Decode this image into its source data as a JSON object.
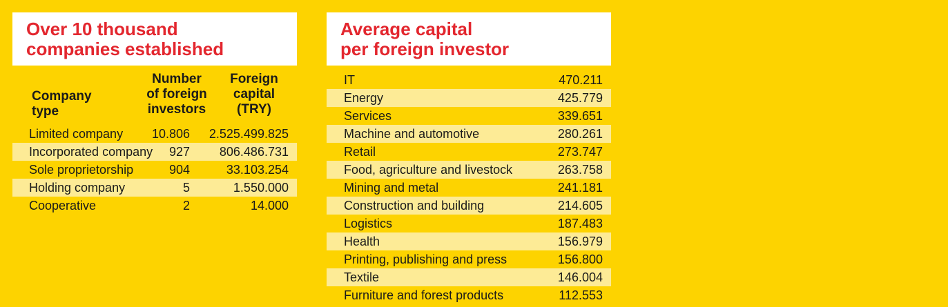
{
  "left_panel": {
    "title_lines": [
      "Over 10 thousand",
      "companies established"
    ],
    "headers": {
      "type_lines": [
        "Company",
        "type"
      ],
      "investors_lines": [
        "Number",
        "of foreign",
        "investors"
      ],
      "capital_lines": [
        "Foreign",
        "capital",
        "(TRY)"
      ]
    },
    "rows": [
      {
        "type": "Limited company",
        "investors": "10.806",
        "capital": "2.525.499.825"
      },
      {
        "type": "Incorporated company",
        "investors": "927",
        "capital": "806.486.731"
      },
      {
        "type": "Sole proprietorship",
        "investors": "904",
        "capital": "33.103.254"
      },
      {
        "type": "Holding company",
        "investors": "5",
        "capital": "1.550.000"
      },
      {
        "type": "Cooperative",
        "investors": "2",
        "capital": "14.000"
      }
    ]
  },
  "right_panel": {
    "title_lines": [
      "Average capital",
      "per foreign investor"
    ],
    "rows": [
      {
        "sector": "IT",
        "value": "470.211"
      },
      {
        "sector": "Energy",
        "value": "425.779"
      },
      {
        "sector": "Services",
        "value": "339.651"
      },
      {
        "sector": "Machine and automotive",
        "value": "280.261"
      },
      {
        "sector": "Retail",
        "value": "273.747"
      },
      {
        "sector": "Food, agriculture and livestock",
        "value": "263.758"
      },
      {
        "sector": "Mining and metal",
        "value": "241.181"
      },
      {
        "sector": "Construction and building",
        "value": "214.605"
      },
      {
        "sector": "Logistics",
        "value": "187.483"
      },
      {
        "sector": "Health",
        "value": "156.979"
      },
      {
        "sector": "Printing, publishing and press",
        "value": "156.800"
      },
      {
        "sector": "Textile",
        "value": "146.004"
      },
      {
        "sector": "Furniture and forest products",
        "value": "112.553"
      }
    ]
  },
  "colors": {
    "background": "#FDD300",
    "title_red": "#E3262E",
    "stripe": "#FDEB96"
  }
}
